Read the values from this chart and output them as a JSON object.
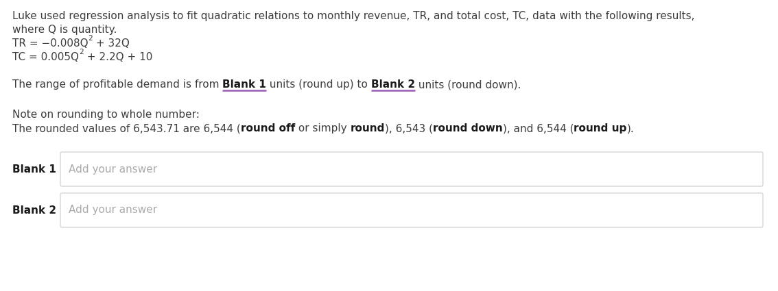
{
  "bg_color": "#ffffff",
  "text_color": "#3d3d3d",
  "placeholder_color": "#aaaaaa",
  "bold_color": "#1a1a1a",
  "underline_color": "#9b59b6",
  "border_color": "#cccccc",
  "line1": "Luke used regression analysis to fit quadratic relations to monthly revenue, TR, and total cost, TC, data with the following results,",
  "line2": "where Q is quantity.",
  "range_line_parts": [
    {
      "text": "The range of profitable demand is from ",
      "bold": false
    },
    {
      "text": "Blank 1",
      "bold": true,
      "underline": true
    },
    {
      "text": " units (round up) to ",
      "bold": false
    },
    {
      "text": "Blank 2",
      "bold": true,
      "underline": true
    },
    {
      "text": " units (round down).",
      "bold": false
    }
  ],
  "note_line1": "Note on rounding to whole number:",
  "note_line2_parts": [
    {
      "text": "The rounded values of 6,543.71 are 6,544 (",
      "bold": false
    },
    {
      "text": "round off",
      "bold": true
    },
    {
      "text": " or simply ",
      "bold": false
    },
    {
      "text": "round",
      "bold": true
    },
    {
      "text": "), 6,543 (",
      "bold": false
    },
    {
      "text": "round down",
      "bold": true
    },
    {
      "text": "), and 6,544 (",
      "bold": false
    },
    {
      "text": "round up",
      "bold": true
    },
    {
      "text": ").",
      "bold": false
    }
  ],
  "blank1_label": "Blank 1",
  "blank2_label": "Blank 2",
  "placeholder_text": "Add your answer",
  "font_size": 11.0
}
